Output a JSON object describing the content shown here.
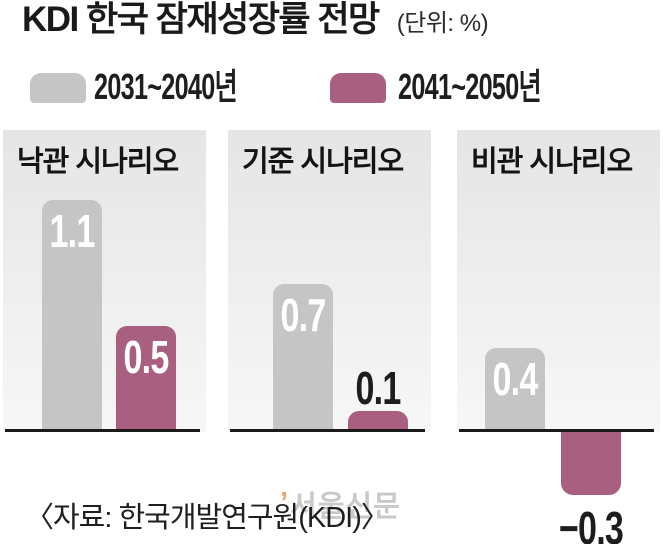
{
  "header": {
    "title": "KDI 한국 잠재성장률 전망",
    "unit": "(단위: %)"
  },
  "legend": {
    "items": [
      {
        "label": "2031~2040년",
        "color": "#c5c5c5"
      },
      {
        "label": "2041~2050년",
        "color": "#a85f80"
      }
    ]
  },
  "footer": {
    "source": "〈자료: 한국개발연구원(KDI)〉"
  },
  "watermark": {
    "mark": "’",
    "text": "서울신문"
  },
  "colors": {
    "bar_gray": "#c5c5c5",
    "bar_plum": "#a85f80",
    "baseline": "#1a1a1a",
    "panel_top": "#e5e5e5",
    "panel_bottom": "#f7f7f7",
    "value_light": "#ffffff",
    "value_dark": "#1d1d1d",
    "watermark_text": "#c9c9c9",
    "watermark_mark": "#eda366"
  },
  "chart_data": {
    "type": "bar",
    "title": "KDI 한국 잠재성장률 전망",
    "unit": "%",
    "categories": [
      "낙관 시나리오",
      "기준 시나리오",
      "비관 시나리오"
    ],
    "series": [
      {
        "name": "2031~2040년",
        "color": "#c5c5c5",
        "values": [
          1.1,
          0.7,
          0.4
        ]
      },
      {
        "name": "2041~2050년",
        "color": "#a85f80",
        "values": [
          0.5,
          0.1,
          -0.3
        ]
      }
    ],
    "value_labels": true,
    "baseline": 0,
    "ylim": [
      -0.4,
      1.3
    ],
    "grid": false,
    "legend_position": "top",
    "source": "한국개발연구원(KDI)"
  }
}
